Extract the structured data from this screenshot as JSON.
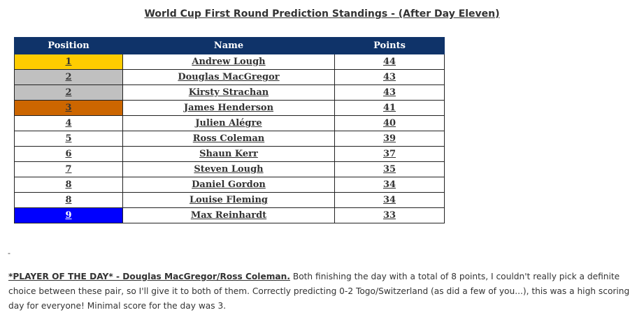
{
  "title": "World Cup First Round Prediction Standings - (After Day Eleven)",
  "table": {
    "headers": [
      "Position",
      "Name",
      "Points"
    ],
    "header_bg": "#0f3369",
    "rows": [
      {
        "position": "1",
        "name": "Andrew Lough",
        "points": "44",
        "highlight": "#ffcc00",
        "text_color": "#333333"
      },
      {
        "position": "2",
        "name": "Douglas MacGregor",
        "points": "43",
        "highlight": "#c0c0c0",
        "text_color": "#333333"
      },
      {
        "position": "2",
        "name": "Kirsty Strachan",
        "points": "43",
        "highlight": "#c0c0c0",
        "text_color": "#333333"
      },
      {
        "position": "3",
        "name": "James Henderson",
        "points": "41",
        "highlight": "#cc6600",
        "text_color": "#333333"
      },
      {
        "position": "4",
        "name": "Julien Alégre",
        "points": "40",
        "highlight": "",
        "text_color": "#333333"
      },
      {
        "position": "5",
        "name": "Ross Coleman",
        "points": "39",
        "highlight": "",
        "text_color": "#333333"
      },
      {
        "position": "6",
        "name": "Shaun Kerr",
        "points": "37",
        "highlight": "",
        "text_color": "#333333"
      },
      {
        "position": "7",
        "name": "Steven Lough",
        "points": "35",
        "highlight": "",
        "text_color": "#333333"
      },
      {
        "position": "8",
        "name": "Daniel Gordon",
        "points": "34",
        "highlight": "",
        "text_color": "#333333"
      },
      {
        "position": "8",
        "name": "Louise Fleming",
        "points": "34",
        "highlight": "",
        "text_color": "#333333"
      },
      {
        "position": "9",
        "name": "Max Reinhardt",
        "points": "33",
        "highlight": "#0000ff",
        "text_color": "#ffffff"
      }
    ]
  },
  "small_mark": "-",
  "paragraph": {
    "player_of_day": "*PLAYER OF THE DAY* - Douglas MacGregor/Ross Coleman.",
    "body": " Both finishing the day with a total of 8 points, I couldn't really pick a definite choice between these pair, so I'll give it to both of them. Correctly predicting 0-2 Togo/Switzerland (as did a few of you...), this was a high scoring day for everyone! Minimal score for the day was 3."
  }
}
